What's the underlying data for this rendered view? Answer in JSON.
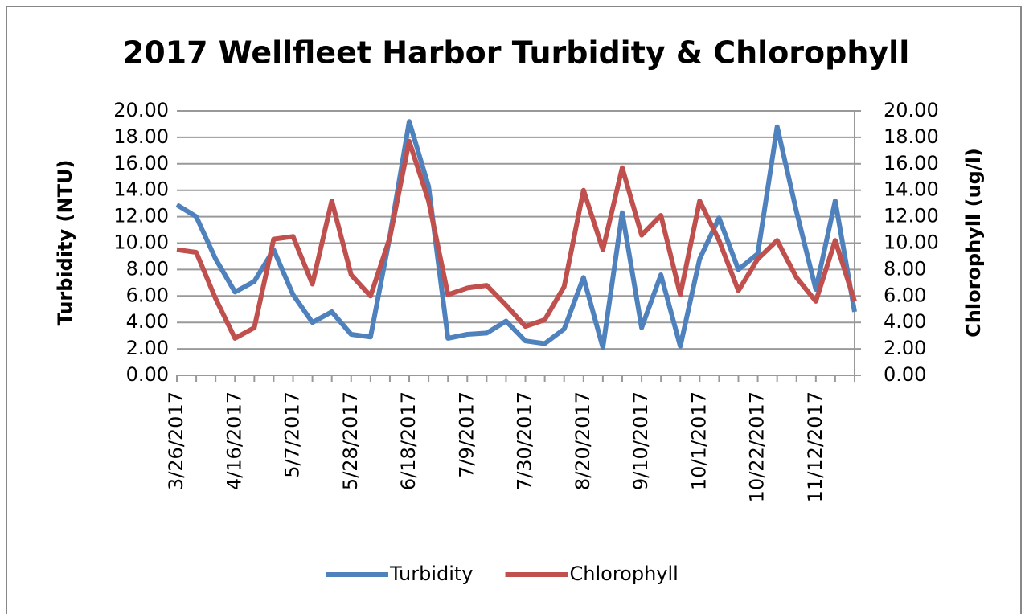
{
  "chart_data": {
    "type": "line",
    "title": "2017 Wellfleet Harbor Turbidity & Chlorophyll",
    "y_label": "Turbidity (NTU)",
    "y2_label": "Chlorophyll (ug/l)",
    "categories": [
      "3/26/2017",
      null,
      null,
      "4/16/2017",
      null,
      null,
      "5/7/2017",
      null,
      null,
      "5/28/2017",
      null,
      null,
      "6/18/2017",
      null,
      null,
      "7/9/2017",
      null,
      null,
      "7/30/2017",
      null,
      null,
      "8/20/2017",
      null,
      null,
      "9/10/2017",
      null,
      null,
      "10/1/2017",
      null,
      null,
      "10/22/2017",
      null,
      null,
      "11/12/2017",
      null,
      null
    ],
    "series": [
      {
        "name": "Turbidity",
        "color": "#4f81bd",
        "axis": "y",
        "values": [
          12.9,
          12.0,
          8.8,
          6.3,
          7.1,
          9.5,
          6.1,
          4.0,
          4.8,
          3.1,
          2.9,
          10.5,
          19.2,
          14.3,
          2.8,
          3.1,
          3.2,
          4.1,
          2.6,
          2.4,
          3.5,
          7.4,
          2.1,
          12.3,
          3.6,
          7.6,
          2.2,
          8.8,
          11.9,
          8.0,
          9.2,
          18.8,
          12.4,
          6.5,
          13.2,
          4.8
        ]
      },
      {
        "name": "Chlorophyll",
        "color": "#c0504d",
        "axis": "y2",
        "values": [
          9.5,
          9.3,
          5.8,
          2.8,
          3.6,
          10.3,
          10.5,
          6.9,
          13.2,
          7.6,
          6.0,
          10.4,
          17.7,
          13.2,
          6.1,
          6.6,
          6.8,
          5.3,
          3.7,
          4.2,
          6.7,
          14.0,
          9.5,
          15.7,
          10.6,
          12.1,
          6.1,
          13.2,
          10.2,
          6.4,
          8.8,
          10.2,
          7.4,
          5.6,
          10.2,
          5.6
        ]
      }
    ],
    "ylim": [
      0,
      20
    ],
    "yticks": [
      {
        "value": 0,
        "label": "0.00"
      },
      {
        "value": 2,
        "label": "2.00"
      },
      {
        "value": 4,
        "label": "4.00"
      },
      {
        "value": 6,
        "label": "6.00"
      },
      {
        "value": 8,
        "label": "8.00"
      },
      {
        "value": 10,
        "label": "10.00"
      },
      {
        "value": 12,
        "label": "12.00"
      },
      {
        "value": 14,
        "label": "14.00"
      },
      {
        "value": 16,
        "label": "16.00"
      },
      {
        "value": 18,
        "label": "18.00"
      },
      {
        "value": 20,
        "label": "20.00"
      }
    ],
    "y2lim": [
      0,
      20
    ],
    "y2ticks": [
      {
        "value": 0,
        "label": "0.00"
      },
      {
        "value": 2,
        "label": "2.00"
      },
      {
        "value": 4,
        "label": "4.00"
      },
      {
        "value": 6,
        "label": "6.00"
      },
      {
        "value": 8,
        "label": "8.00"
      },
      {
        "value": 10,
        "label": "10.00"
      },
      {
        "value": 12,
        "label": "12.00"
      },
      {
        "value": 14,
        "label": "14.00"
      },
      {
        "value": 16,
        "label": "16.00"
      },
      {
        "value": 18,
        "label": "18.00"
      },
      {
        "value": 20,
        "label": "20.00"
      }
    ],
    "grid": true,
    "legend": "bottom"
  }
}
